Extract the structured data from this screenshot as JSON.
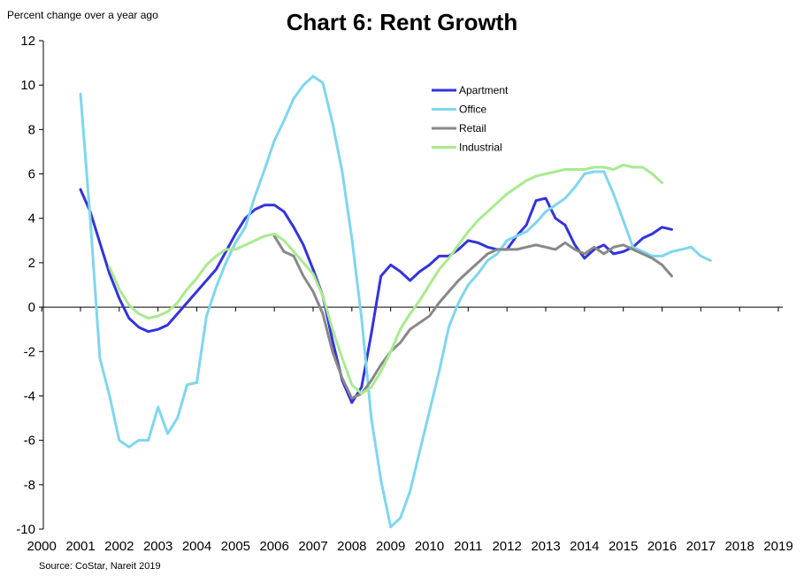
{
  "title": "Chart 6: Rent Growth",
  "y_axis_label": "Percent change over  a year ago",
  "source": "Source: CoStar, Nareit 2019",
  "chart_data": {
    "type": "line",
    "title": "Chart 6: Rent Growth",
    "ylabel": "Percent change over  a year ago",
    "xlabel": "",
    "ylim": [
      -10,
      12
    ],
    "y_ticks": [
      "12",
      "10",
      "8",
      "6",
      "4",
      "2",
      "0",
      "-2",
      "-4",
      "-6",
      "-8",
      "-10"
    ],
    "xlim": [
      2000,
      2019
    ],
    "x_ticks": [
      "2000",
      "2001",
      "2002",
      "2003",
      "2004",
      "2005",
      "2006",
      "2007",
      "2008",
      "2009",
      "2010",
      "2011",
      "2012",
      "2013",
      "2014",
      "2015",
      "2016",
      "2017",
      "2018",
      "2019"
    ],
    "legend": "top-right",
    "grid": false,
    "series": [
      {
        "name": "Apartment",
        "color": "#3333dd",
        "points": [
          [
            2001.0,
            5.3
          ],
          [
            2001.25,
            4.3
          ],
          [
            2001.5,
            2.9
          ],
          [
            2001.75,
            1.5
          ],
          [
            2002.0,
            0.4
          ],
          [
            2002.25,
            -0.5
          ],
          [
            2002.5,
            -0.9
          ],
          [
            2002.75,
            -1.1
          ],
          [
            2003.0,
            -1.0
          ],
          [
            2003.25,
            -0.8
          ],
          [
            2003.5,
            -0.3
          ],
          [
            2004.0,
            0.7
          ],
          [
            2004.5,
            1.7
          ],
          [
            2004.75,
            2.5
          ],
          [
            2005.0,
            3.3
          ],
          [
            2005.25,
            4.0
          ],
          [
            2005.5,
            4.4
          ],
          [
            2005.75,
            4.6
          ],
          [
            2006.0,
            4.6
          ],
          [
            2006.25,
            4.3
          ],
          [
            2006.5,
            3.6
          ],
          [
            2006.75,
            2.8
          ],
          [
            2007.0,
            1.7
          ],
          [
            2007.25,
            0.5
          ],
          [
            2007.5,
            -1.5
          ],
          [
            2007.75,
            -3.3
          ],
          [
            2008.0,
            -4.3
          ],
          [
            2008.25,
            -3.6
          ],
          [
            2008.5,
            -1.2
          ],
          [
            2008.75,
            1.4
          ],
          [
            2009.0,
            1.9
          ],
          [
            2009.25,
            1.6
          ],
          [
            2009.5,
            1.2
          ],
          [
            2009.75,
            1.6
          ],
          [
            2010.0,
            1.9
          ],
          [
            2010.25,
            2.3
          ],
          [
            2010.5,
            2.3
          ],
          [
            2010.75,
            2.6
          ],
          [
            2011.0,
            3.0
          ],
          [
            2011.25,
            2.9
          ],
          [
            2011.5,
            2.7
          ],
          [
            2011.75,
            2.6
          ],
          [
            2012.0,
            2.6
          ],
          [
            2012.25,
            3.2
          ],
          [
            2012.5,
            3.7
          ],
          [
            2012.75,
            4.8
          ],
          [
            2013.0,
            4.9
          ],
          [
            2013.25,
            4.0
          ],
          [
            2013.5,
            3.7
          ],
          [
            2013.75,
            2.8
          ],
          [
            2014.0,
            2.2
          ],
          [
            2014.25,
            2.6
          ],
          [
            2014.5,
            2.8
          ],
          [
            2014.75,
            2.4
          ],
          [
            2015.0,
            2.5
          ],
          [
            2015.25,
            2.7
          ],
          [
            2015.5,
            3.1
          ],
          [
            2015.75,
            3.3
          ],
          [
            2016.0,
            3.6
          ],
          [
            2016.25,
            3.5
          ]
        ]
      },
      {
        "name": "Office",
        "color": "#7fd6ee",
        "points": [
          [
            2001.0,
            9.6
          ],
          [
            2001.25,
            4.0
          ],
          [
            2001.5,
            -2.3
          ],
          [
            2001.75,
            -4.0
          ],
          [
            2002.0,
            -6.0
          ],
          [
            2002.25,
            -6.3
          ],
          [
            2002.5,
            -6.0
          ],
          [
            2002.75,
            -6.0
          ],
          [
            2003.0,
            -4.5
          ],
          [
            2003.25,
            -5.7
          ],
          [
            2003.5,
            -5.0
          ],
          [
            2003.75,
            -3.5
          ],
          [
            2004.0,
            -3.4
          ],
          [
            2004.25,
            -0.4
          ],
          [
            2004.5,
            0.9
          ],
          [
            2004.75,
            2.0
          ],
          [
            2005.0,
            2.9
          ],
          [
            2005.25,
            3.6
          ],
          [
            2005.5,
            5.0
          ],
          [
            2005.75,
            6.2
          ],
          [
            2006.0,
            7.5
          ],
          [
            2006.25,
            8.4
          ],
          [
            2006.5,
            9.4
          ],
          [
            2006.75,
            10.0
          ],
          [
            2007.0,
            10.4
          ],
          [
            2007.25,
            10.1
          ],
          [
            2007.5,
            8.3
          ],
          [
            2007.75,
            6.1
          ],
          [
            2008.0,
            3.1
          ],
          [
            2008.25,
            -0.5
          ],
          [
            2008.5,
            -5.0
          ],
          [
            2008.75,
            -7.8
          ],
          [
            2009.0,
            -9.9
          ],
          [
            2009.25,
            -9.5
          ],
          [
            2009.5,
            -8.3
          ],
          [
            2009.75,
            -6.5
          ],
          [
            2010.0,
            -4.7
          ],
          [
            2010.25,
            -2.9
          ],
          [
            2010.5,
            -0.9
          ],
          [
            2010.75,
            0.2
          ],
          [
            2011.0,
            1.0
          ],
          [
            2011.25,
            1.5
          ],
          [
            2011.5,
            2.1
          ],
          [
            2011.75,
            2.4
          ],
          [
            2012.0,
            3.0
          ],
          [
            2012.25,
            3.2
          ],
          [
            2012.5,
            3.4
          ],
          [
            2012.75,
            3.8
          ],
          [
            2013.0,
            4.3
          ],
          [
            2013.25,
            4.6
          ],
          [
            2013.5,
            4.9
          ],
          [
            2013.75,
            5.4
          ],
          [
            2014.0,
            6.0
          ],
          [
            2014.25,
            6.1
          ],
          [
            2014.5,
            6.1
          ],
          [
            2014.75,
            5.1
          ],
          [
            2015.0,
            3.9
          ],
          [
            2015.25,
            2.7
          ],
          [
            2015.5,
            2.5
          ],
          [
            2015.75,
            2.3
          ],
          [
            2016.0,
            2.3
          ],
          [
            2016.25,
            2.5
          ],
          [
            2016.5,
            2.6
          ],
          [
            2016.75,
            2.7
          ],
          [
            2017.0,
            2.3
          ],
          [
            2017.25,
            2.1
          ]
        ]
      },
      {
        "name": "Retail",
        "color": "#888888",
        "points": [
          [
            2006.0,
            3.2
          ],
          [
            2006.25,
            2.5
          ],
          [
            2006.5,
            2.3
          ],
          [
            2006.75,
            1.4
          ],
          [
            2007.0,
            0.7
          ],
          [
            2007.25,
            -0.3
          ],
          [
            2007.5,
            -2.0
          ],
          [
            2007.75,
            -3.2
          ],
          [
            2008.0,
            -4.1
          ],
          [
            2008.25,
            -3.9
          ],
          [
            2008.5,
            -3.3
          ],
          [
            2008.75,
            -2.6
          ],
          [
            2009.0,
            -2.0
          ],
          [
            2009.25,
            -1.6
          ],
          [
            2009.5,
            -1.0
          ],
          [
            2009.75,
            -0.7
          ],
          [
            2010.0,
            -0.4
          ],
          [
            2010.25,
            0.2
          ],
          [
            2010.5,
            0.7
          ],
          [
            2010.75,
            1.2
          ],
          [
            2011.0,
            1.6
          ],
          [
            2011.25,
            2.0
          ],
          [
            2011.5,
            2.4
          ],
          [
            2011.75,
            2.6
          ],
          [
            2012.0,
            2.6
          ],
          [
            2012.25,
            2.6
          ],
          [
            2012.5,
            2.7
          ],
          [
            2012.75,
            2.8
          ],
          [
            2013.0,
            2.7
          ],
          [
            2013.25,
            2.6
          ],
          [
            2013.5,
            2.9
          ],
          [
            2013.75,
            2.6
          ],
          [
            2014.0,
            2.4
          ],
          [
            2014.25,
            2.7
          ],
          [
            2014.5,
            2.4
          ],
          [
            2014.75,
            2.7
          ],
          [
            2015.0,
            2.8
          ],
          [
            2015.25,
            2.6
          ],
          [
            2015.5,
            2.4
          ],
          [
            2015.75,
            2.2
          ],
          [
            2016.0,
            1.9
          ],
          [
            2016.25,
            1.4
          ]
        ]
      },
      {
        "name": "Industrial",
        "color": "#a8ea90",
        "points": [
          [
            2001.75,
            1.8
          ],
          [
            2002.0,
            0.8
          ],
          [
            2002.25,
            0.1
          ],
          [
            2002.5,
            -0.3
          ],
          [
            2002.75,
            -0.5
          ],
          [
            2003.0,
            -0.4
          ],
          [
            2003.25,
            -0.2
          ],
          [
            2003.5,
            0.2
          ],
          [
            2003.75,
            0.8
          ],
          [
            2004.0,
            1.3
          ],
          [
            2004.25,
            1.9
          ],
          [
            2004.5,
            2.3
          ],
          [
            2004.75,
            2.6
          ],
          [
            2005.0,
            2.6
          ],
          [
            2005.25,
            2.8
          ],
          [
            2005.5,
            3.0
          ],
          [
            2005.75,
            3.2
          ],
          [
            2006.0,
            3.3
          ],
          [
            2006.25,
            3.0
          ],
          [
            2006.5,
            2.5
          ],
          [
            2006.75,
            2.0
          ],
          [
            2007.0,
            1.5
          ],
          [
            2007.25,
            0.5
          ],
          [
            2007.5,
            -1.0
          ],
          [
            2007.75,
            -2.3
          ],
          [
            2008.0,
            -3.5
          ],
          [
            2008.25,
            -3.9
          ],
          [
            2008.5,
            -3.6
          ],
          [
            2008.75,
            -2.9
          ],
          [
            2009.0,
            -2.0
          ],
          [
            2009.25,
            -1.0
          ],
          [
            2009.5,
            -0.3
          ],
          [
            2009.75,
            0.3
          ],
          [
            2010.0,
            1.0
          ],
          [
            2010.25,
            1.7
          ],
          [
            2010.5,
            2.2
          ],
          [
            2010.75,
            2.8
          ],
          [
            2011.0,
            3.4
          ],
          [
            2011.25,
            3.9
          ],
          [
            2011.5,
            4.3
          ],
          [
            2011.75,
            4.7
          ],
          [
            2012.0,
            5.1
          ],
          [
            2012.25,
            5.4
          ],
          [
            2012.5,
            5.7
          ],
          [
            2012.75,
            5.9
          ],
          [
            2013.0,
            6.0
          ],
          [
            2013.25,
            6.1
          ],
          [
            2013.5,
            6.2
          ],
          [
            2013.75,
            6.2
          ],
          [
            2014.0,
            6.2
          ],
          [
            2014.25,
            6.3
          ],
          [
            2014.5,
            6.3
          ],
          [
            2014.75,
            6.2
          ],
          [
            2015.0,
            6.4
          ],
          [
            2015.25,
            6.3
          ],
          [
            2015.5,
            6.3
          ],
          [
            2015.75,
            6.0
          ],
          [
            2016.0,
            5.6
          ]
        ]
      }
    ]
  }
}
